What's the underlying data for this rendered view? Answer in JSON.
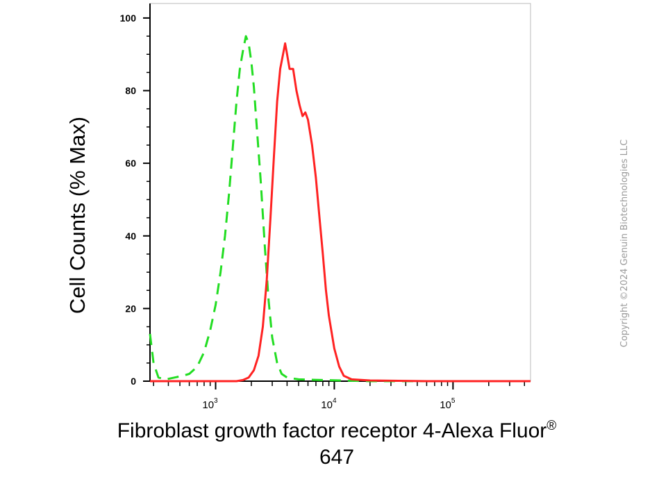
{
  "chart_data": {
    "type": "line",
    "title": "",
    "xlabel_main": "Fibroblast growth factor receptor 4-Alexa Fluor",
    "xlabel_sup": "®",
    "xlabel_line2": "647",
    "ylabel": "Cell Counts (% Max)",
    "xscale": "log",
    "xlim": [
      280,
      450000
    ],
    "ylim": [
      0,
      104
    ],
    "yticks": [
      0,
      20,
      40,
      60,
      80,
      100
    ],
    "xticks_decades": [
      {
        "value": 1000,
        "base": "10",
        "exp": "3"
      },
      {
        "value": 10000,
        "base": "10",
        "exp": "4"
      },
      {
        "value": 100000,
        "base": "10",
        "exp": "5"
      }
    ],
    "grid": false,
    "legend": "none",
    "series": [
      {
        "color": "#22dd22",
        "style": "dashed",
        "points": [
          [
            280,
            13
          ],
          [
            300,
            5
          ],
          [
            330,
            1
          ],
          [
            380,
            0.5
          ],
          [
            450,
            1
          ],
          [
            530,
            1.5
          ],
          [
            600,
            2
          ],
          [
            700,
            4
          ],
          [
            800,
            8
          ],
          [
            900,
            14
          ],
          [
            1000,
            21
          ],
          [
            1100,
            30
          ],
          [
            1200,
            40
          ],
          [
            1300,
            52
          ],
          [
            1400,
            65
          ],
          [
            1500,
            77
          ],
          [
            1600,
            86
          ],
          [
            1700,
            91
          ],
          [
            1800,
            95
          ],
          [
            1900,
            93
          ],
          [
            2000,
            88
          ],
          [
            2100,
            81
          ],
          [
            2200,
            72
          ],
          [
            2400,
            55
          ],
          [
            2600,
            37
          ],
          [
            2800,
            22
          ],
          [
            3000,
            12
          ],
          [
            3300,
            5
          ],
          [
            3600,
            2
          ],
          [
            4000,
            1
          ],
          [
            5000,
            0.5
          ],
          [
            8000,
            0.3
          ],
          [
            20000,
            0
          ],
          [
            450000,
            0
          ]
        ]
      },
      {
        "color": "#ff2222",
        "style": "solid",
        "points": [
          [
            280,
            0
          ],
          [
            1500,
            0
          ],
          [
            1700,
            0.3
          ],
          [
            1900,
            1
          ],
          [
            2100,
            3
          ],
          [
            2300,
            7
          ],
          [
            2500,
            15
          ],
          [
            2700,
            28
          ],
          [
            2900,
            45
          ],
          [
            3100,
            62
          ],
          [
            3300,
            77
          ],
          [
            3500,
            86
          ],
          [
            3700,
            90
          ],
          [
            3850,
            93
          ],
          [
            4000,
            90
          ],
          [
            4200,
            86
          ],
          [
            4500,
            86
          ],
          [
            4800,
            80
          ],
          [
            5100,
            76
          ],
          [
            5400,
            73
          ],
          [
            5700,
            74
          ],
          [
            6000,
            72
          ],
          [
            6500,
            65
          ],
          [
            7000,
            56
          ],
          [
            7500,
            45
          ],
          [
            8000,
            35
          ],
          [
            8500,
            25
          ],
          [
            9000,
            18
          ],
          [
            10000,
            9
          ],
          [
            11000,
            4
          ],
          [
            12000,
            1.5
          ],
          [
            14000,
            0.5
          ],
          [
            20000,
            0.2
          ],
          [
            60000,
            0
          ],
          [
            450000,
            0
          ]
        ]
      }
    ]
  },
  "copyright": "Copyright ©2024 Genuin Biotechnologies LLC"
}
